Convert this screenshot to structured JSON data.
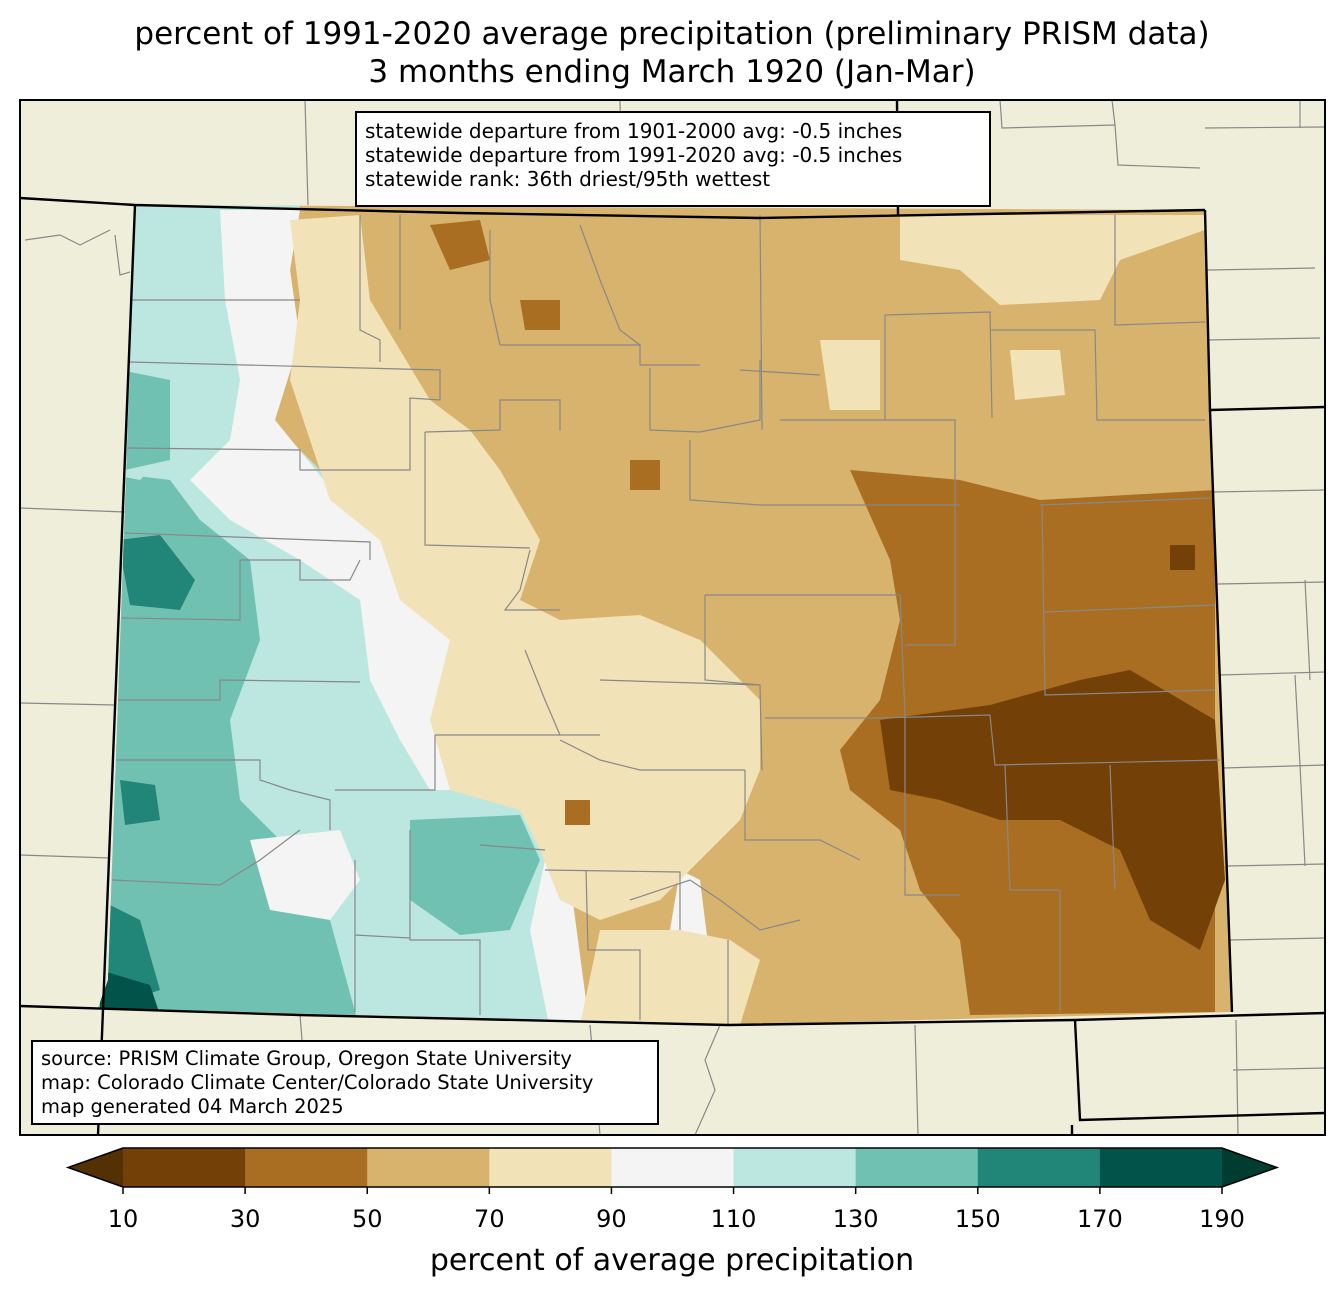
{
  "title_line1": "percent of 1991-2020 average precipitation (preliminary PRISM data)",
  "title_line2": "3 months ending March 1920 (Jan-Mar)",
  "stats": {
    "line1": "statewide departure from 1901-2000 avg: -0.5 inches",
    "line2": "statewide departure from 1991-2020 avg: -0.5 inches",
    "line3": "statewide rank: 36th driest/95th wettest"
  },
  "source": {
    "line1": "source: PRISM Climate Group, Oregon State University",
    "line2": "map: Colorado Climate Center/Colorado State University",
    "line3": "map generated 04 March 2025"
  },
  "colorbar": {
    "label": "percent of average precipitation",
    "ticks": [
      "10",
      "30",
      "50",
      "70",
      "90",
      "110",
      "130",
      "150",
      "170",
      "190"
    ],
    "bins": [
      {
        "range": "10-30",
        "color": "#734107"
      },
      {
        "range": "30-50",
        "color": "#aa6e22"
      },
      {
        "range": "50-70",
        "color": "#d8b36d"
      },
      {
        "range": "70-90",
        "color": "#f2e2b8"
      },
      {
        "range": "90-110",
        "color": "#f3f4f3"
      },
      {
        "range": "110-130",
        "color": "#bce6e0"
      },
      {
        "range": "130-150",
        "color": "#70c1b2"
      },
      {
        "range": "150-170",
        "color": "#218578"
      },
      {
        "range": "170-190",
        "color": "#02544a"
      }
    ],
    "under_color": "#543005",
    "over_color": "#003c30"
  },
  "map": {
    "background_color": "#efeedb",
    "state": "Colorado",
    "pattern": "Wettest (110-170%) in the western mountains and southwest; near normal in central mountains; driest (10-50%) across the southeastern plains."
  }
}
